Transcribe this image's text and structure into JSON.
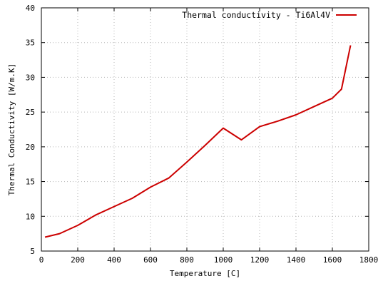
{
  "chart_data": {
    "type": "line",
    "title": "",
    "xlabel": "Temperature [C]",
    "ylabel": "Thermal Conductivity [W/m.K]",
    "xlim": [
      0,
      1800
    ],
    "ylim": [
      5,
      40
    ],
    "xticks": [
      0,
      200,
      400,
      600,
      800,
      1000,
      1200,
      1400,
      1600,
      1800
    ],
    "yticks": [
      5,
      10,
      15,
      20,
      25,
      30,
      35,
      40
    ],
    "grid": true,
    "legend_position": "top-right",
    "series": [
      {
        "name": "Thermal conductivity - Ti6Al4V",
        "color": "#cc0000",
        "x": [
          20,
          100,
          200,
          300,
          400,
          500,
          600,
          700,
          800,
          900,
          1000,
          1100,
          1200,
          1300,
          1400,
          1500,
          1600,
          1650,
          1700
        ],
        "y": [
          7.0,
          7.5,
          8.7,
          10.2,
          11.4,
          12.6,
          14.2,
          15.5,
          17.8,
          20.2,
          22.7,
          21.0,
          22.9,
          23.7,
          24.6,
          25.8,
          27.0,
          28.3,
          34.6
        ]
      }
    ]
  }
}
